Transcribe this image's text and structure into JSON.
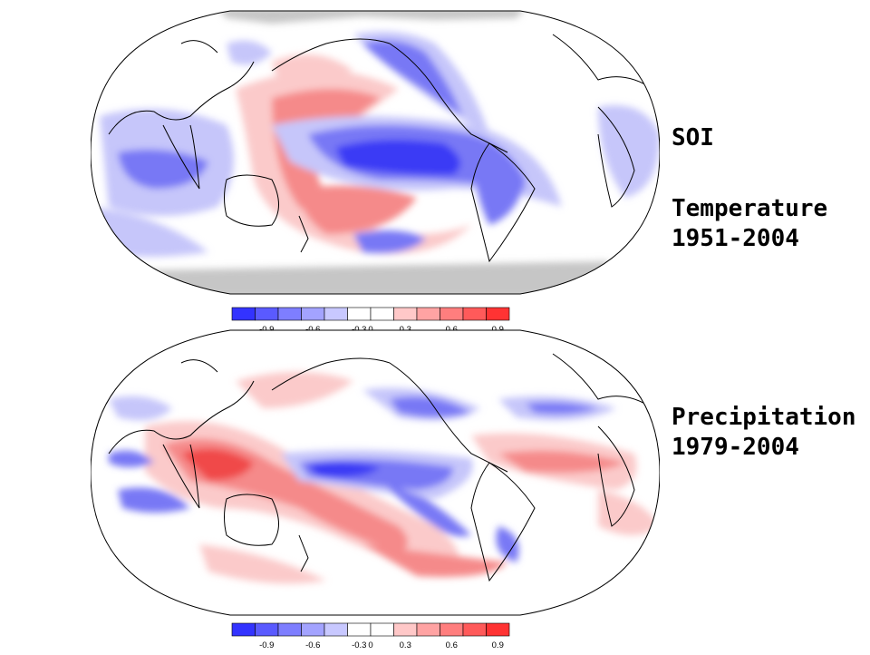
{
  "labels": {
    "index_name": "SOI",
    "temperature": {
      "variable": "Temperature",
      "period": "1951-2004"
    },
    "precipitation": {
      "variable": "Precipitation",
      "period": "1979-2004"
    }
  },
  "colorbar": {
    "tick_labels": [
      "-0.9",
      "-0.6",
      "-0.3",
      "0",
      "0.3",
      "0.6",
      "0.9"
    ],
    "colors": [
      "#3333ff",
      "#5a5aff",
      "#7e7eff",
      "#a3a3ff",
      "#c8c8ff",
      "#ffffff",
      "#ffffff",
      "#ffc8c8",
      "#ffa3a3",
      "#ff7e7e",
      "#ff5a5a",
      "#ff3333"
    ]
  },
  "palette": {
    "blue_strong": "#3a3af5",
    "blue_mid": "#7878f5",
    "blue_light": "#c6c6fa",
    "red_strong": "#f04a4a",
    "red_mid": "#f58a8a",
    "red_light": "#fbcaca",
    "missing_data": "#c6c6c6",
    "coastline": "#000000"
  }
}
